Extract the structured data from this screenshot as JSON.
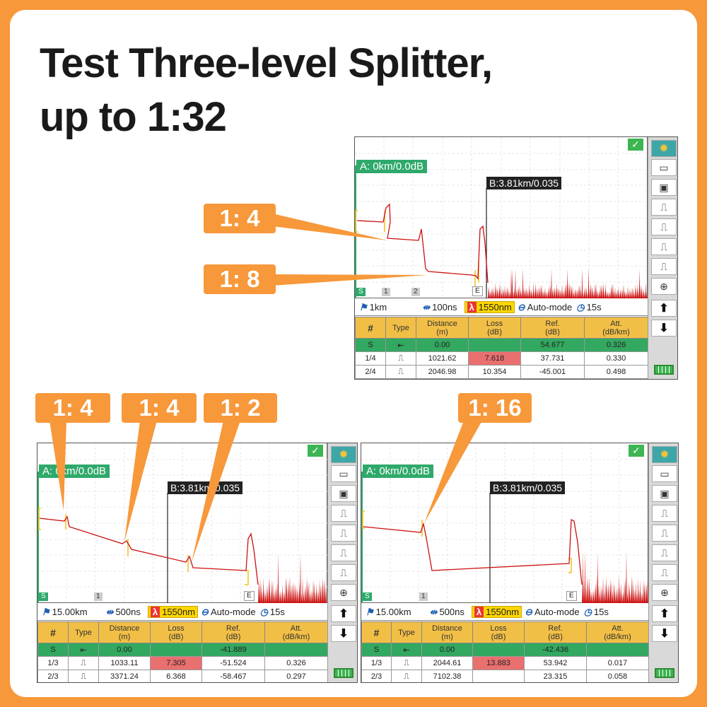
{
  "headline": {
    "line1": "Test Three-level Splitter,",
    "line2": "up to 1:32"
  },
  "callouts": {
    "top_a": "1: 4",
    "top_b": "1: 8",
    "left_a": "1: 4",
    "left_b": "1: 4",
    "left_c": "1: 2",
    "right_a": "1: 16"
  },
  "colors": {
    "brand_orange": "#f7983a",
    "cursor_a_green": "#2fa96b",
    "header_gold": "#f2bf46",
    "loss_highlight": "#ea6f6f",
    "trace_red": "#cc1111"
  },
  "screens": [
    {
      "tagA": "A: 0km/0.0dB",
      "tagB": "B:3.81km/0.035",
      "markers": [
        "S",
        "1",
        "2",
        "E"
      ],
      "info": {
        "range": "1km",
        "pulse": "100ns",
        "wavelength": "1550nm",
        "mode": "Auto-mode",
        "duration": "15s"
      },
      "headers": [
        "#",
        "Type",
        "Distance\n(m)",
        "Loss\n(dB)",
        "Ref.\n(dB)",
        "Att.\n(dB/km)"
      ],
      "rows": [
        [
          "S",
          "⇤",
          "0.00",
          "",
          "54.677",
          "0.326"
        ],
        [
          "1/4",
          "⎍",
          "1021.62",
          "7.618",
          "37.731",
          "0.330"
        ],
        [
          "2/4",
          "⎍",
          "2046.98",
          "10.354",
          "-45.001",
          "0.498"
        ]
      ]
    },
    {
      "tagA": "A: 0km/0.0dB",
      "tagB": "B:3.81km/0.035",
      "markers": [
        "S",
        "1",
        "E"
      ],
      "info": {
        "range": "15.00km",
        "pulse": "500ns",
        "wavelength": "1550nm",
        "mode": "Auto-mode",
        "duration": "15s"
      },
      "headers": [
        "#",
        "Type",
        "Distance\n(m)",
        "Loss\n(dB)",
        "Ref.\n(dB)",
        "Att.\n(dB/km)"
      ],
      "rows": [
        [
          "S",
          "⇤",
          "0.00",
          "",
          "-41.889",
          ""
        ],
        [
          "1/3",
          "⎍",
          "1033.11",
          "7.305",
          "-51.524",
          "0.326"
        ],
        [
          "2/3",
          "⎍",
          "3371.24",
          "6.368",
          "-58.467",
          "0.297"
        ]
      ]
    },
    {
      "tagA": "A: 0km/0.0dB",
      "tagB": "B:3.81km/0.035",
      "markers": [
        "S",
        "1",
        "E"
      ],
      "info": {
        "range": "15.00km",
        "pulse": "500ns",
        "wavelength": "1550nm",
        "mode": "Auto-mode",
        "duration": "15s"
      },
      "headers": [
        "#",
        "Type",
        "Distance\n(m)",
        "Loss\n(dB)",
        "Ref.\n(dB)",
        "Att.\n(dB/km)"
      ],
      "rows": [
        [
          "S",
          "⇤",
          "0.00",
          "",
          "-42.436",
          ""
        ],
        [
          "1/3",
          "⎍",
          "2044.61",
          "13.883",
          "53.942",
          "0.017"
        ],
        [
          "2/3",
          "⎍",
          "7102.38",
          "",
          "23.315",
          "0.058"
        ]
      ]
    }
  ]
}
